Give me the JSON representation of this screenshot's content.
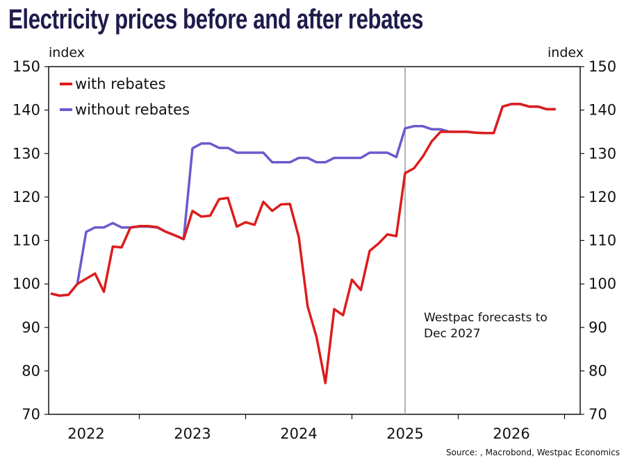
{
  "chart_data": {
    "type": "line",
    "title": "Electricity prices before and after rebates",
    "ylabel_left": "index",
    "ylabel_right": "index",
    "ylim": [
      70,
      150
    ],
    "yticks": [
      70,
      80,
      90,
      100,
      110,
      120,
      130,
      140,
      150
    ],
    "xtick_labels": [
      "2022",
      "2023",
      "2024",
      "2025",
      "2026"
    ],
    "x_start": "2022-03",
    "x_end": "2026-12",
    "frequency": "monthly",
    "grid": false,
    "legend_placement": "top-left",
    "forecast_marker": {
      "date": "2025-07",
      "label_lines": [
        "Westpac forecasts to",
        "Dec 2027"
      ]
    },
    "series": [
      {
        "name": "with rebates",
        "color": "#dd1c1c",
        "values": [
          97.8,
          97.3,
          97.5,
          100,
          101.2,
          102.4,
          98.2,
          108.6,
          108.4,
          113,
          113.3,
          113.3,
          113.1,
          112,
          111.2,
          110.3,
          116.8,
          115.5,
          115.7,
          119.5,
          119.8,
          113.2,
          114.2,
          113.6,
          118.9,
          116.8,
          118.3,
          118.4,
          110.8,
          94.8,
          87.8,
          77.2,
          94.2,
          92.8,
          101,
          98.6,
          107.6,
          109.3,
          111.4,
          111,
          125.5,
          126.6,
          129.3,
          132.8,
          135,
          135,
          135,
          135,
          134.8,
          134.7,
          134.7,
          140.8,
          141.4,
          141.4,
          140.8,
          140.8,
          140.2,
          140.2
        ]
      },
      {
        "name": "without rebates",
        "color": "#6a5acd",
        "values": [
          97.8,
          97.3,
          97.5,
          100,
          112,
          113,
          113,
          114,
          113,
          113,
          113.2,
          113.2,
          113,
          112,
          111.2,
          110.3,
          131.2,
          132.3,
          132.3,
          131.3,
          131.3,
          130.2,
          130.2,
          130.2,
          130.2,
          128,
          128,
          128,
          129,
          129,
          128,
          128,
          129,
          129,
          129,
          129,
          130.2,
          130.2,
          130.2,
          129.2,
          135.8,
          136.3,
          136.3,
          135.6,
          135.6,
          135,
          135,
          135,
          134.8,
          134.7,
          134.7,
          140.8,
          141.4,
          141.4,
          140.8,
          140.8,
          140.2,
          140.2
        ]
      }
    ],
    "source": "Source: , Macrobond, Westpac Economics"
  }
}
